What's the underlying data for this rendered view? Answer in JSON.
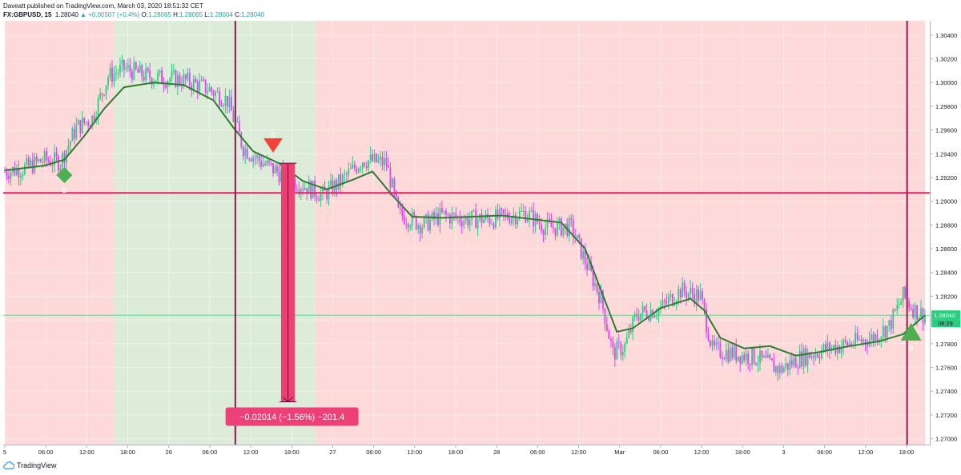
{
  "header": {
    "publisher_line": "Daveatt published on TradingView.com, March 03, 2020 18:51:32 CET",
    "symbol": "FX:GBPUSD, 15",
    "last": "1.28040",
    "change": "▲ +0.00507 (+0.4%)",
    "o_label": "O:",
    "o_value": "1.28065",
    "h_label": "H:",
    "h_value": "1.28065",
    "l_label": "L:",
    "l_value": "1.28004",
    "c_label": "C:",
    "c_value": "1.28040"
  },
  "footer": {
    "brand": "TradingView"
  },
  "colors": {
    "bull": "#26d07c",
    "bear": "#e040fb",
    "ma": "#2e7d32",
    "bg_red": "#fdd9d9",
    "bg_green": "#dcecd9",
    "hline": "#e91e63",
    "vline": "#8e1a4e",
    "measure": "#ec4077",
    "price_tag": "#26d07c",
    "buy_marker": "#4caf50",
    "sell_marker": "#f44336"
  },
  "chart_data": {
    "type": "line",
    "title": "FX:GBPUSD, 15",
    "xlabel": "",
    "ylabel": "",
    "ylim": [
      1.2695,
      1.3052
    ],
    "x_ticks": [
      "5",
      "06:00",
      "12:00",
      "18:00",
      "26",
      "06:00",
      "12:00",
      "18:00",
      "27",
      "06:00",
      "12:00",
      "18:00",
      "28",
      "06:00",
      "12:00",
      "Mar",
      "06:00",
      "12:00",
      "18:00",
      "3",
      "06:00",
      "12:00",
      "18:00"
    ],
    "y_ticks": [
      "1.30400",
      "1.30200",
      "1.30000",
      "1.29800",
      "1.29600",
      "1.29400",
      "1.29200",
      "1.29000",
      "1.28800",
      "1.28600",
      "1.28400",
      "1.28200",
      "1.28000",
      "1.27800",
      "1.27600",
      "1.27400",
      "1.27200",
      "1.27000"
    ],
    "y_tick_values": [
      1.304,
      1.302,
      1.3,
      1.298,
      1.296,
      1.294,
      1.292,
      1.29,
      1.288,
      1.286,
      1.284,
      1.282,
      1.28,
      1.278,
      1.276,
      1.274,
      1.272,
      1.27
    ],
    "x_range_bars": [
      0,
      463
    ],
    "series": [
      {
        "name": "",
        "values": [
          [
            0,
            1.2925
          ],
          [
            10,
            1.2928
          ],
          [
            20,
            1.2935
          ],
          [
            28,
            1.2933
          ],
          [
            36,
            1.2962
          ],
          [
            44,
            1.297
          ],
          [
            52,
            1.3005
          ],
          [
            60,
            1.3012
          ],
          [
            72,
            1.3005
          ],
          [
            90,
            1.3002
          ],
          [
            102,
            1.2995
          ],
          [
            112,
            1.2985
          ],
          [
            120,
            1.2945
          ],
          [
            130,
            1.2932
          ],
          [
            140,
            1.2922
          ],
          [
            152,
            1.2912
          ],
          [
            160,
            1.2905
          ],
          [
            170,
            1.2918
          ],
          [
            180,
            1.2935
          ],
          [
            192,
            1.2932
          ],
          [
            198,
            1.289
          ],
          [
            210,
            1.288
          ],
          [
            220,
            1.2888
          ],
          [
            232,
            1.2885
          ],
          [
            245,
            1.2885
          ],
          [
            262,
            1.289
          ],
          [
            272,
            1.2878
          ],
          [
            285,
            1.2878
          ],
          [
            292,
            1.285
          ],
          [
            300,
            1.2818
          ],
          [
            306,
            1.2772
          ],
          [
            312,
            1.2778
          ],
          [
            318,
            1.2805
          ],
          [
            330,
            1.281
          ],
          [
            340,
            1.2825
          ],
          [
            350,
            1.282
          ],
          [
            356,
            1.2775
          ],
          [
            366,
            1.2772
          ],
          [
            378,
            1.2768
          ],
          [
            390,
            1.2758
          ],
          [
            400,
            1.2768
          ],
          [
            412,
            1.2775
          ],
          [
            425,
            1.278
          ],
          [
            437,
            1.2785
          ],
          [
            445,
            1.2795
          ],
          [
            452,
            1.282
          ],
          [
            458,
            1.2808
          ],
          [
            463,
            1.2804
          ]
        ]
      },
      {
        "name": "",
        "values": [
          [
            0,
            1.2926
          ],
          [
            20,
            1.293
          ],
          [
            30,
            1.2935
          ],
          [
            40,
            1.2955
          ],
          [
            50,
            1.2978
          ],
          [
            60,
            1.2996
          ],
          [
            75,
            1.3
          ],
          [
            90,
            1.2998
          ],
          [
            105,
            1.2985
          ],
          [
            115,
            1.2962
          ],
          [
            125,
            1.2942
          ],
          [
            138,
            1.2932
          ],
          [
            150,
            1.2917
          ],
          [
            162,
            1.291
          ],
          [
            175,
            1.2918
          ],
          [
            185,
            1.2925
          ],
          [
            195,
            1.2905
          ],
          [
            205,
            1.2887
          ],
          [
            220,
            1.2886
          ],
          [
            235,
            1.2887
          ],
          [
            250,
            1.2888
          ],
          [
            265,
            1.2885
          ],
          [
            280,
            1.2882
          ],
          [
            292,
            1.286
          ],
          [
            300,
            1.2825
          ],
          [
            308,
            1.279
          ],
          [
            316,
            1.2793
          ],
          [
            330,
            1.281
          ],
          [
            345,
            1.2818
          ],
          [
            352,
            1.2808
          ],
          [
            360,
            1.2785
          ],
          [
            372,
            1.2776
          ],
          [
            385,
            1.2778
          ],
          [
            398,
            1.277
          ],
          [
            410,
            1.2773
          ],
          [
            425,
            1.2778
          ],
          [
            440,
            1.2782
          ],
          [
            452,
            1.2788
          ],
          [
            463,
            1.2804
          ]
        ]
      }
    ],
    "horizontal_line": 1.2907,
    "last_price": 1.2804,
    "price_tag": "1.28040",
    "countdown_tag": "08:29",
    "vertical_lines_at_bars": [
      116,
      454
    ],
    "background_zones": [
      {
        "from": 0,
        "to": 55,
        "color": "red"
      },
      {
        "from": 55,
        "to": 156,
        "color": "green"
      },
      {
        "from": 156,
        "to": 463,
        "color": "red"
      }
    ],
    "markers": [
      {
        "type": "buy",
        "bar": 30,
        "price": 1.2922,
        "label": "B"
      },
      {
        "type": "sell",
        "bar": 135,
        "price": 1.2945,
        "label": "S"
      },
      {
        "type": "buy",
        "bar": 456,
        "price": 1.2788,
        "label": "B"
      }
    ],
    "measure": {
      "from_bar": 139,
      "to_bar": 146,
      "from_price": 1.2932,
      "to_price": 1.2731,
      "label": "−0.02014 (−1.56%) −201.4"
    }
  }
}
